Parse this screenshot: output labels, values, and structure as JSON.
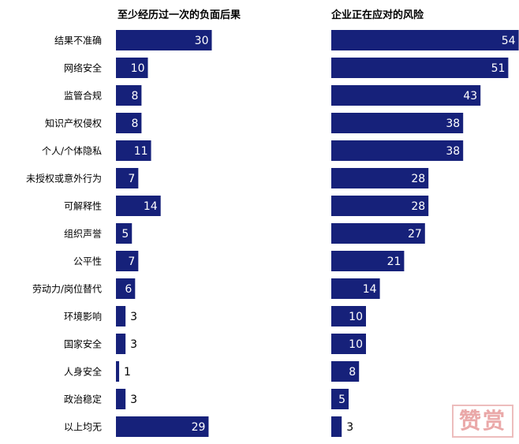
{
  "colors": {
    "bar": "#16217a",
    "text": "#000000",
    "label_on_bar": "#ffffff",
    "stamp": "#e38b8b"
  },
  "watermark": {
    "text": "赞赏"
  },
  "chart_data": [
    {
      "type": "bar",
      "orientation": "horizontal",
      "title": "至少经历过一次的负面后果",
      "categories": [
        "结果不准确",
        "网络安全",
        "监管合规",
        "知识产权侵权",
        "个人/个体隐私",
        "未授权或意外行为",
        "可解释性",
        "组织声誉",
        "公平性",
        "劳动力/岗位替代",
        "环境影响",
        "国家安全",
        "人身安全",
        "政治稳定",
        "以上均无"
      ],
      "values": [
        30,
        10,
        8,
        8,
        11,
        7,
        14,
        5,
        7,
        6,
        3,
        3,
        1,
        3,
        29
      ],
      "xlim": [
        0,
        100
      ],
      "grid": false,
      "legend": "none"
    },
    {
      "type": "bar",
      "orientation": "horizontal",
      "title": "企业正在应对的风险",
      "categories": [
        "结果不准确",
        "网络安全",
        "监管合规",
        "知识产权侵权",
        "个人/个体隐私",
        "未授权或意外行为",
        "可解释性",
        "组织声誉",
        "公平性",
        "劳动力/岗位替代",
        "环境影响",
        "国家安全",
        "人身安全",
        "政治稳定",
        "以上均无"
      ],
      "values": [
        54,
        51,
        43,
        38,
        38,
        28,
        28,
        27,
        21,
        14,
        10,
        10,
        8,
        5,
        3
      ],
      "xlim": [
        0,
        100
      ],
      "grid": false,
      "legend": "none"
    }
  ]
}
